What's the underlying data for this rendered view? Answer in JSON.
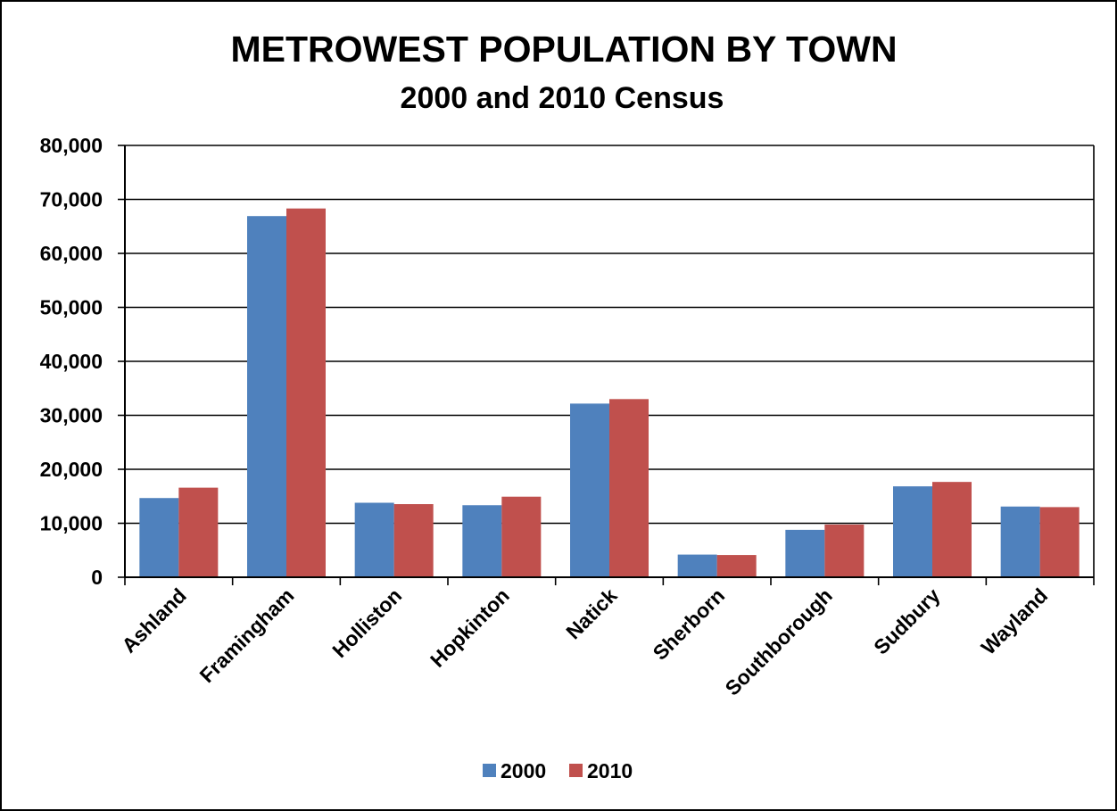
{
  "chart_data": {
    "type": "bar",
    "title": "METROWEST POPULATION BY TOWN",
    "subtitle": "2000 and 2010 Census",
    "xlabel": "",
    "ylabel": "",
    "categories": [
      "Ashland",
      "Framingham",
      "Holliston",
      "Hopkinton",
      "Natick",
      "Sherborn",
      "Southborough",
      "Sudbury",
      "Wayland"
    ],
    "series": [
      {
        "name": "2000",
        "color": "#4F81BD",
        "values": [
          14674,
          66910,
          13801,
          13346,
          32170,
          4200,
          8781,
          16841,
          13100
        ]
      },
      {
        "name": "2010",
        "color": "#C0504D",
        "values": [
          16593,
          68318,
          13547,
          14925,
          33006,
          4119,
          9767,
          17659,
          12994
        ]
      }
    ],
    "ylim": [
      0,
      80000
    ],
    "yticks": [
      0,
      10000,
      20000,
      30000,
      40000,
      50000,
      60000,
      70000,
      80000
    ],
    "ytick_labels": [
      "0",
      "10,000",
      "20,000",
      "30,000",
      "40,000",
      "50,000",
      "60,000",
      "70,000",
      "80,000"
    ],
    "grid": true,
    "legend_position": "bottom-center"
  }
}
